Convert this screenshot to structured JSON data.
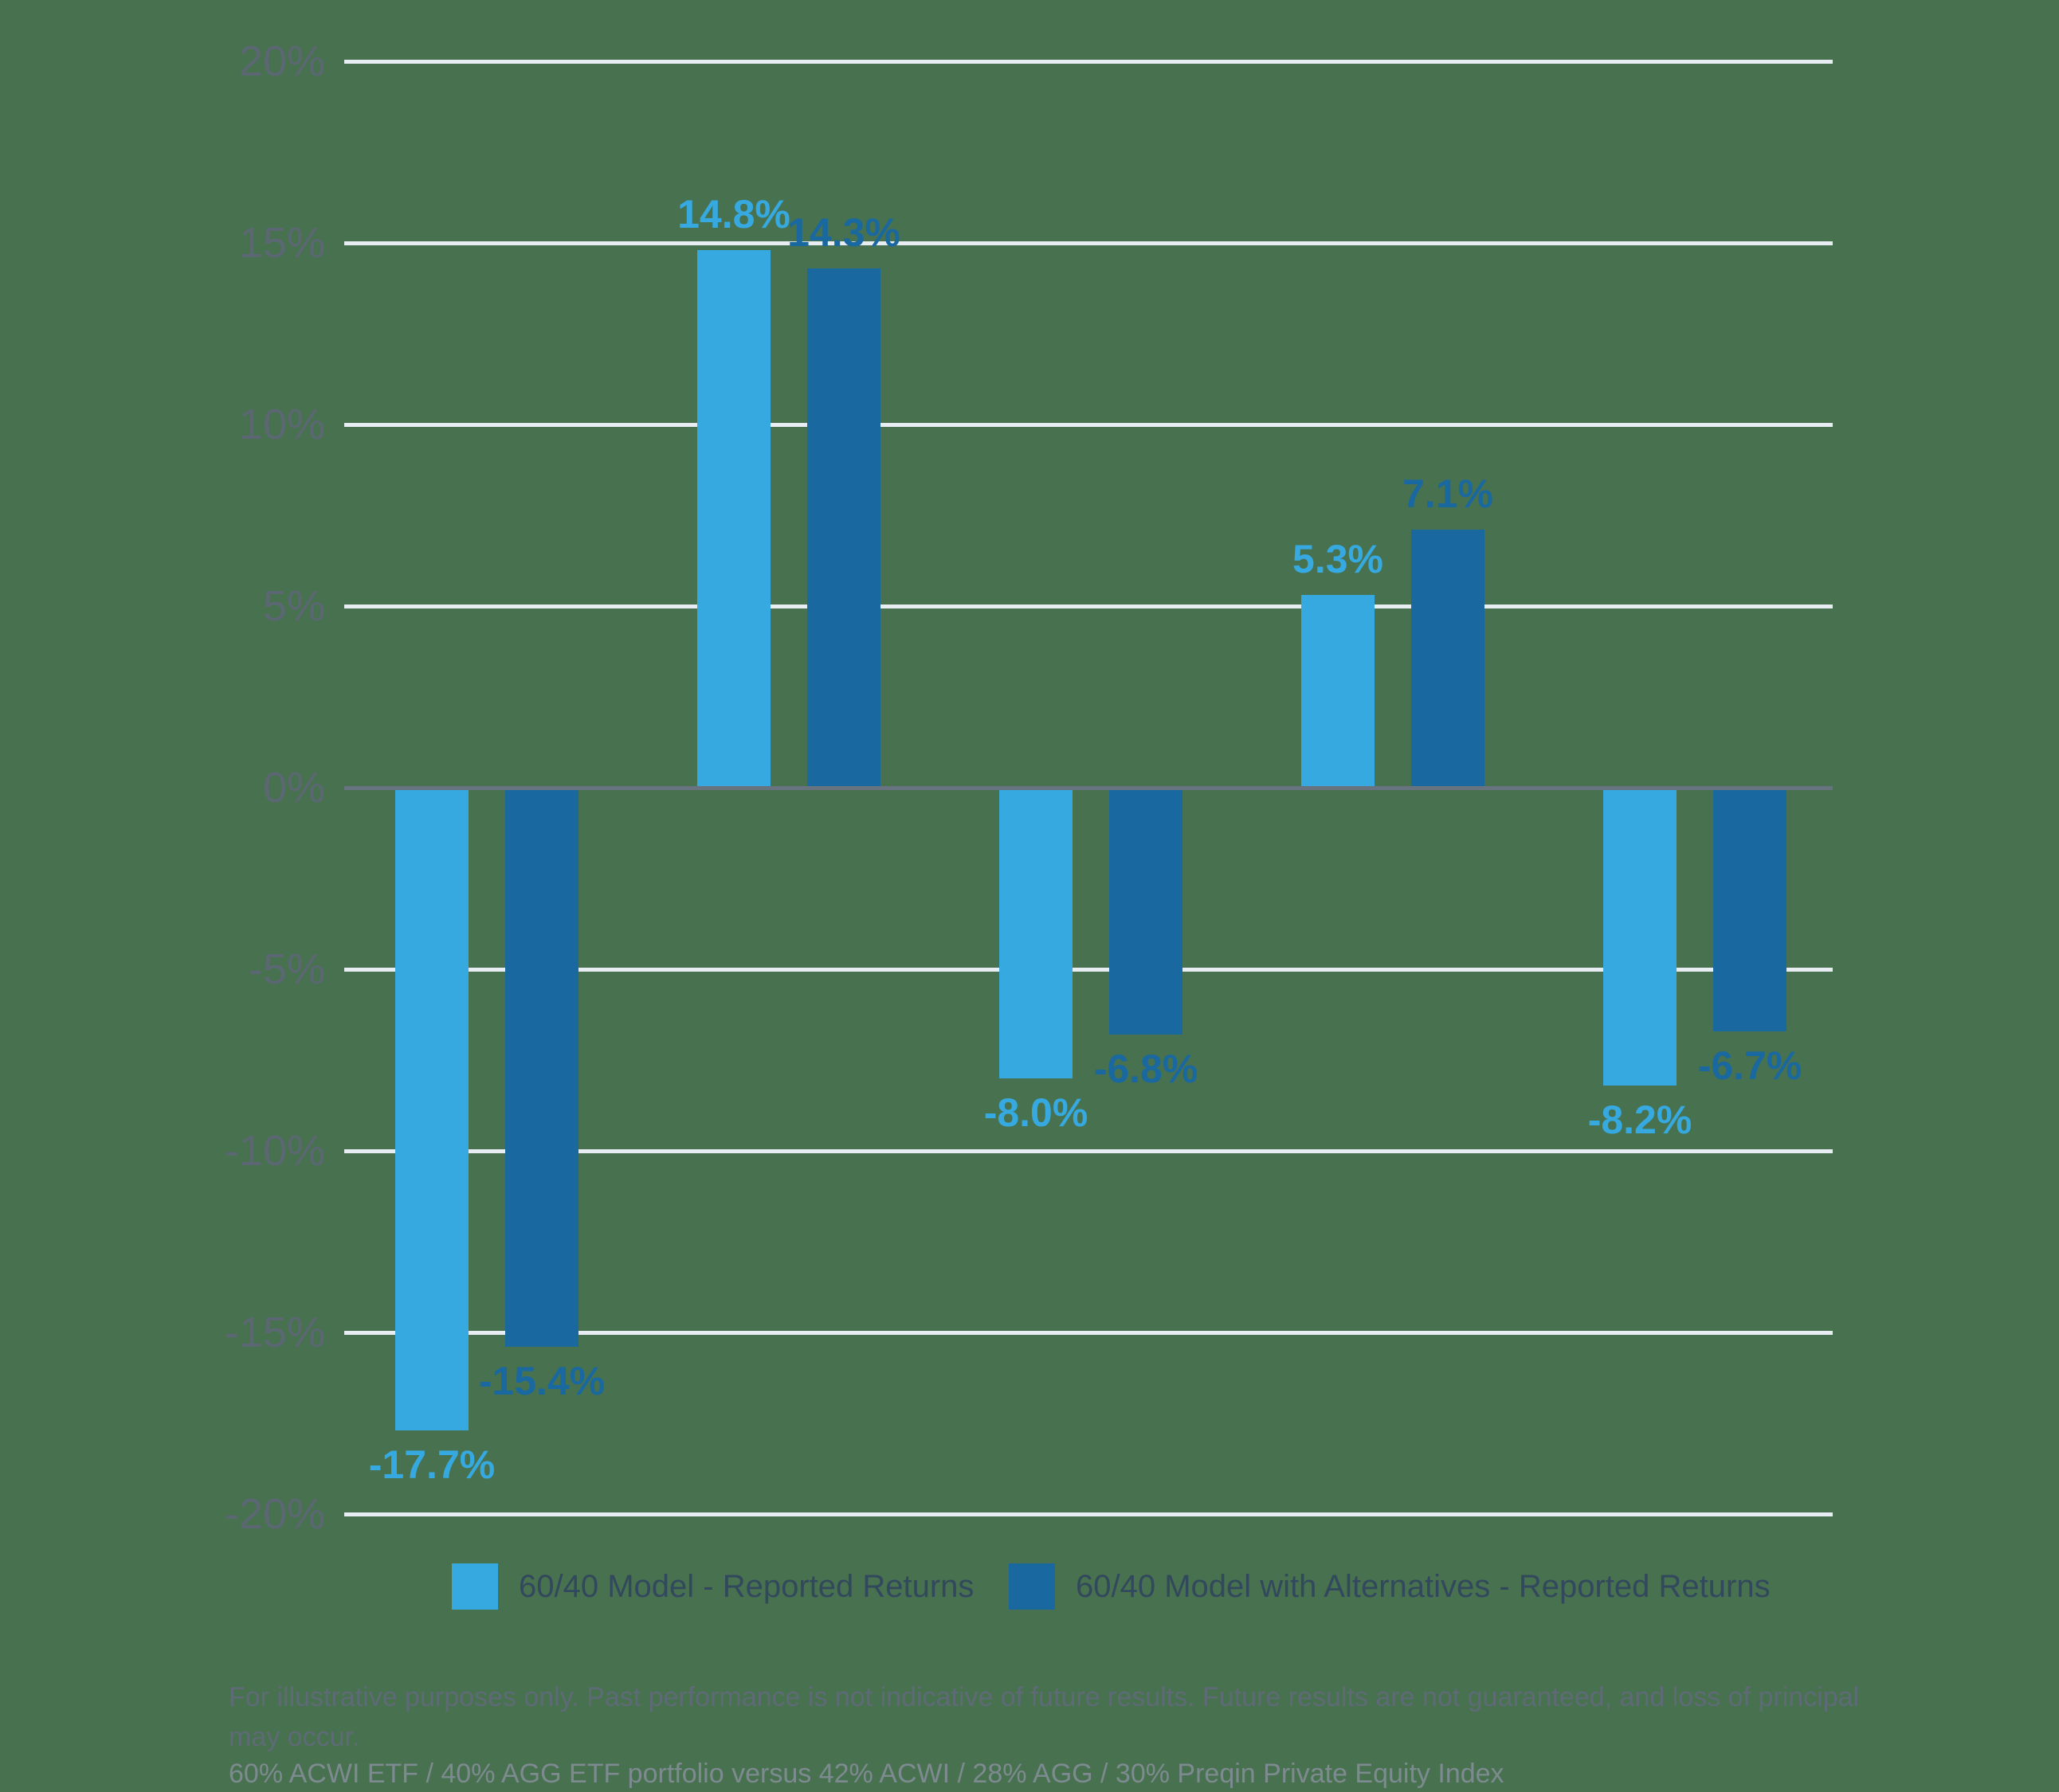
{
  "chart_data": {
    "type": "bar",
    "categories": [
      "",
      "",
      "",
      "",
      ""
    ],
    "series": [
      {
        "name": "60/40 Model - Reported Returns",
        "color": "#36A9E1",
        "values": [
          -17.7,
          14.8,
          -8.0,
          5.3,
          -8.2
        ],
        "labels": [
          "-17.7%",
          "14.8%",
          "-8.0%",
          "5.3%",
          "-8.2%"
        ]
      },
      {
        "name": "60/40 Model with Alternatives - Reported Returns",
        "color": "#19689F",
        "values": [
          -15.4,
          14.3,
          -6.8,
          7.1,
          -6.7
        ],
        "labels": [
          "-15.4%",
          "14.3%",
          "-6.8%",
          "7.1%",
          "-6.7%"
        ]
      }
    ],
    "y_axis": {
      "ticks": [
        "20%",
        "15%",
        "10%",
        "5%",
        "0%",
        "-5%",
        "-10%",
        "-15%",
        "-20%"
      ],
      "tick_values": [
        20,
        15,
        10,
        5,
        0,
        -5,
        -10,
        -15,
        -20
      ],
      "ylim": [
        -20,
        20
      ],
      "grid": true
    },
    "xlabel": "",
    "ylabel": "",
    "title": "",
    "legend_position": "bottom",
    "data_labels_shown": true
  },
  "colors": {
    "background": "#48714F",
    "series_light_blue": "#36A9E1",
    "series_dark_blue": "#19689F",
    "gridline": "#E7EDF3",
    "zero_axis_line": "#67737E",
    "axis_tick_text": "#5B6772",
    "legend_text": "#32485C",
    "footnote_primary_text": "#5E6B76",
    "footnote_secondary_text": "#7D8B90"
  },
  "footnotes": {
    "disclaimer": "For illustrative purposes only. Past performance is not indicative of future results. Future results are not guaranteed, and loss of principal may occur.",
    "methodology": "60% ACWI ETF / 40% AGG ETF portfolio versus 42% ACWI / 28% AGG / 30% Preqin Private Equity Index"
  }
}
